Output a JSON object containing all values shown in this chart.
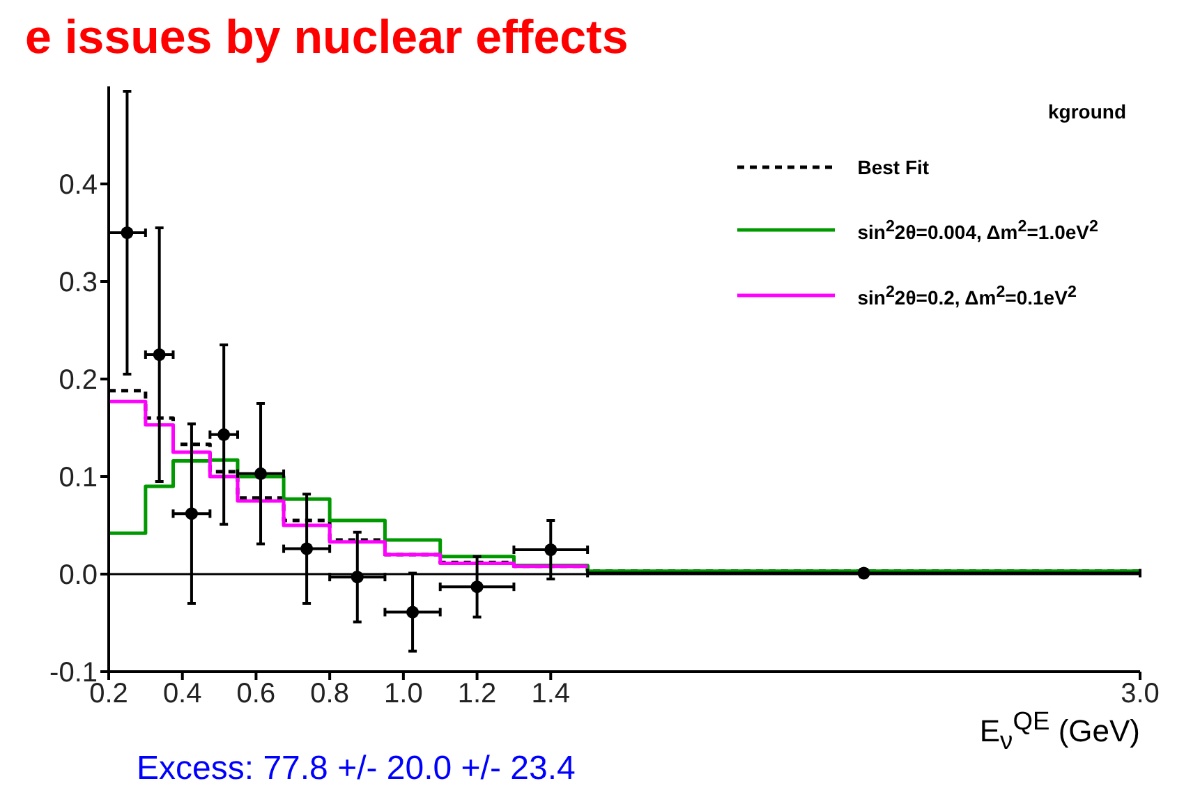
{
  "chart_data": {
    "type": "histogram",
    "title": "e issues by nuclear effects",
    "xlabel": "E$_{ν}$$^{QE}$ (GeV)",
    "annotations": [
      "kground",
      "Excess: 77.8 +/- 20.0 +/- 23.4"
    ],
    "xlim": [
      0.2,
      3.0
    ],
    "xticks": [
      0.2,
      0.4,
      0.6,
      0.8,
      {
        "value": 1.0,
        "label": "1.0"
      },
      1.2,
      1.4,
      {
        "value": 3.0,
        "label": "3.0"
      }
    ],
    "ylim": [
      -0.1,
      0.5
    ],
    "yticks": [
      -0.1,
      {
        "value": 0,
        "label": "0.0"
      },
      0.1,
      0.2,
      0.3,
      0.4
    ],
    "grid": false,
    "legend": "top right",
    "ref_lines": [
      {
        "axis": "y",
        "value": 0,
        "color": "#000000"
      }
    ],
    "series": [
      {
        "name": "Best Fit",
        "color": "#000000",
        "line_style": "dashed",
        "bins": [
          0.2,
          0.3,
          0.375,
          0.475,
          0.55,
          0.675,
          0.8,
          0.95,
          1.1,
          1.3,
          1.5,
          3.0
        ],
        "values": [
          0.188,
          0.16,
          0.133,
          0.105,
          0.078,
          0.055,
          0.035,
          0.02,
          0.012,
          0.008,
          0.003
        ]
      },
      {
        "name": "sin$^{2}$2θ=0.004, Δm$^{2}$=1.0eV$^{2}$",
        "color": "#009900",
        "line_style": "solid",
        "bins": [
          0.2,
          0.3,
          0.375,
          0.475,
          0.55,
          0.675,
          0.8,
          0.95,
          1.1,
          1.3,
          1.5,
          3.0
        ],
        "values": [
          0.042,
          0.09,
          0.116,
          0.117,
          0.1,
          0.077,
          0.055,
          0.035,
          0.018,
          0.009,
          0.003
        ]
      },
      {
        "name": "sin$^{2}$2θ=0.2, Δm$^{2}$=0.1eV$^{2}$",
        "color": "#ff00ff",
        "line_style": "solid",
        "bins": [
          0.2,
          0.3,
          0.375,
          0.475,
          0.55,
          0.675,
          0.8,
          0.95,
          1.1,
          1.3,
          1.5
        ],
        "values": [
          0.177,
          0.153,
          0.125,
          0.1,
          0.075,
          0.05,
          0.033,
          0.02,
          0.011,
          0.008
        ]
      },
      {
        "type": "scatter",
        "color": "#000000",
        "marker": "circle",
        "x": [
          0.25,
          0.3375,
          0.425,
          0.5125,
          0.6125,
          0.7375,
          0.875,
          1.025,
          1.2,
          1.4,
          2.25
        ],
        "values": [
          0.35,
          0.225,
          0.062,
          0.143,
          0.103,
          0.026,
          -0.003,
          -0.039,
          -0.013,
          0.025,
          0.001
        ],
        "errors": [
          0.145,
          0.13,
          0.092,
          0.092,
          0.072,
          0.056,
          0.046,
          0.04,
          0.031,
          0.03,
          0.004
        ],
        "xerrors": [
          0.05,
          0.0375,
          0.05,
          0.0375,
          0.0625,
          0.0625,
          0.075,
          0.075,
          0.1,
          0.1,
          0.75
        ]
      }
    ]
  }
}
